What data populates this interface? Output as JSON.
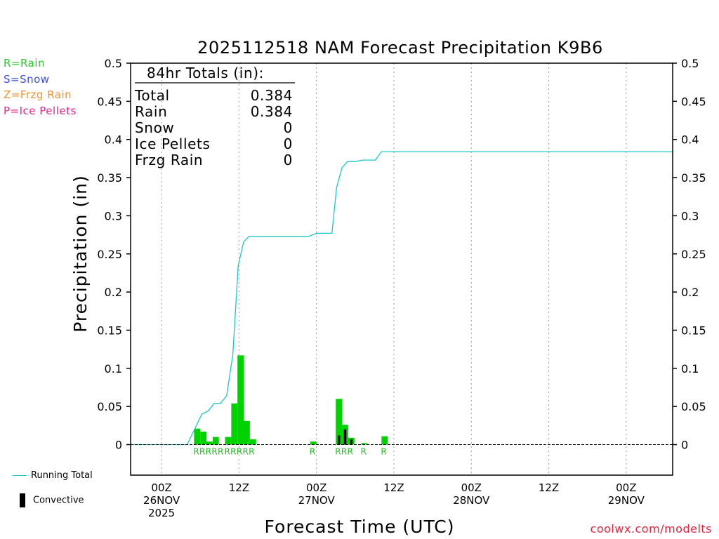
{
  "chart_data": {
    "type": "bar",
    "title": "2025112518 NAM Forecast Precipitation K9B6",
    "xlabel": "Forecast Time (UTC)",
    "ylabel": "Precipitation (in)",
    "ylim": [
      -0.04,
      0.5
    ],
    "xlim_hours": [
      -4,
      66
    ],
    "y_ticks": [
      "0",
      "0.05",
      "0.1",
      "0.15",
      "0.2",
      "0.25",
      "0.3",
      "0.35",
      "0.4",
      "0.45",
      "0.5"
    ],
    "x_ticks": [
      {
        "hour": 0,
        "lines": [
          "00Z",
          "26NOV",
          "2025"
        ]
      },
      {
        "hour": 10,
        "lines": [
          "12Z"
        ]
      },
      {
        "hour": 20,
        "lines": [
          "00Z",
          "27NOV"
        ]
      },
      {
        "hour": 30,
        "lines": [
          "12Z"
        ]
      },
      {
        "hour": 40,
        "lines": [
          "00Z",
          "28NOV"
        ]
      },
      {
        "hour": 50,
        "lines": [
          "12Z"
        ]
      },
      {
        "hour": 60,
        "lines": [
          "00Z",
          "29NOV"
        ]
      }
    ],
    "grid": "vertical-dotted",
    "bars_hourly_precip": [
      {
        "hour": 4.2,
        "value": 0.021,
        "convective": 0,
        "type": "R"
      },
      {
        "hour": 5.0,
        "value": 0.017,
        "convective": 0,
        "type": "R"
      },
      {
        "hour": 5.8,
        "value": 0.004,
        "convective": 0,
        "type": "R"
      },
      {
        "hour": 6.6,
        "value": 0.01,
        "convective": 0,
        "type": "R"
      },
      {
        "hour": 8.2,
        "value": 0.01,
        "convective": 0,
        "type": "R"
      },
      {
        "hour": 9.0,
        "value": 0.054,
        "convective": 0,
        "type": "R"
      },
      {
        "hour": 9.8,
        "value": 0.117,
        "convective": 0,
        "type": "R"
      },
      {
        "hour": 10.6,
        "value": 0.031,
        "convective": 0,
        "type": "R"
      },
      {
        "hour": 11.4,
        "value": 0.007,
        "convective": 0,
        "type": "R"
      },
      {
        "hour": 19.2,
        "value": 0.004,
        "convective": 0,
        "type": "R"
      },
      {
        "hour": 22.5,
        "value": 0.06,
        "convective": 0.012,
        "type": "R"
      },
      {
        "hour": 23.3,
        "value": 0.026,
        "convective": 0.02,
        "type": "R"
      },
      {
        "hour": 24.1,
        "value": 0.009,
        "convective": 0.007,
        "type": "R"
      },
      {
        "hour": 25.8,
        "value": 0.002,
        "convective": 0,
        "type": "R"
      },
      {
        "hour": 28.4,
        "value": 0.011,
        "convective": 0,
        "type": "R"
      }
    ],
    "series": [
      {
        "name": "Running Total",
        "x": [
          -4,
          3.3,
          4.4,
          5.2,
          6.0,
          6.8,
          7.6,
          8.4,
          9.2,
          9.9,
          10.6,
          11.3,
          12,
          19,
          20,
          22,
          22.6,
          23.3,
          24.0,
          25.0,
          26.0,
          27.6,
          28.4,
          66
        ],
        "y": [
          0,
          0,
          0.023,
          0.04,
          0.044,
          0.054,
          0.054,
          0.064,
          0.118,
          0.235,
          0.266,
          0.273,
          0.273,
          0.273,
          0.277,
          0.277,
          0.337,
          0.363,
          0.371,
          0.371,
          0.373,
          0.373,
          0.384,
          0.384
        ]
      }
    ],
    "type_labels": [
      {
        "hour": 4.2,
        "text": "RRRRR"
      },
      {
        "hour": 8.2,
        "text": "RRRRR"
      },
      {
        "hour": 19.2,
        "text": "R"
      },
      {
        "hour": 22.5,
        "text": "RRR"
      },
      {
        "hour": 25.8,
        "text": "R"
      },
      {
        "hour": 28.4,
        "text": "R"
      }
    ],
    "totals_box": {
      "header": "84hr Totals (in):",
      "rows": [
        {
          "label": "Total",
          "value": "0.384"
        },
        {
          "label": "Rain",
          "value": "0.384"
        },
        {
          "label": "Snow",
          "value": "0"
        },
        {
          "label": "Ice Pellets",
          "value": "0"
        },
        {
          "label": "Frzg Rain",
          "value": "0"
        }
      ]
    }
  },
  "legend_keys": [
    {
      "text": "R=Rain",
      "color": "#22cc22"
    },
    {
      "text": "S=Snow",
      "color": "#3c50e6"
    },
    {
      "text": "Z=Frzg Rain",
      "color": "#f0912e"
    },
    {
      "text": "P=Ice Pellets",
      "color": "#e8248c"
    }
  ],
  "bottom_legend": {
    "running_total": "Running Total",
    "convective": "Convective"
  },
  "colors": {
    "rain_bar": "#00d200",
    "convective_bar": "#000000",
    "running_total_line": "#19c8c8",
    "grid": "#9a9a9a"
  },
  "credit": "coolwx.com/modelts"
}
